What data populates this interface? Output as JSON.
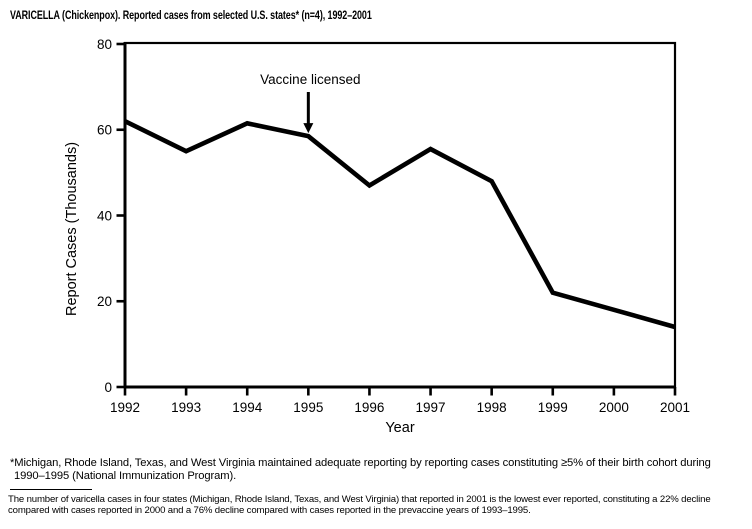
{
  "chart_data": {
    "type": "line",
    "title": "VARICELLA (Chickenpox). Reported cases from selected U.S. states* (n=4), 1992–2001",
    "x": [
      1992,
      1993,
      1994,
      1995,
      1996,
      1997,
      1998,
      1999,
      2000,
      2001
    ],
    "values": [
      62,
      55,
      61.5,
      58.5,
      47,
      55.5,
      48,
      22,
      18,
      14
    ],
    "xlabel": "Year",
    "ylabel": "Report Cases (Thousands)",
    "ylim": [
      0,
      80
    ],
    "yticks": [
      0,
      20,
      40,
      60,
      80
    ],
    "grid": false,
    "legend": "none",
    "line_color": "#000000",
    "frame_color": "#000000",
    "annotation": {
      "text": "Vaccine licensed",
      "x_year": 1995,
      "points_to_value": 58.5
    }
  },
  "footnotes": {
    "note1": "*Michigan, Rhode Island, Texas, and West Virginia maintained adequate reporting by reporting cases constituting ≥5% of their birth cohort during 1990–1995 (National Immunization Program).",
    "note2": "The number of varicella cases in four states (Michigan, Rhode Island, Texas, and West Virginia) that reported in 2001 is the lowest ever reported, constituting a 22% decline compared with cases reported in 2000 and a 76% decline compared with cases reported in the prevaccine years of 1993–1995."
  }
}
